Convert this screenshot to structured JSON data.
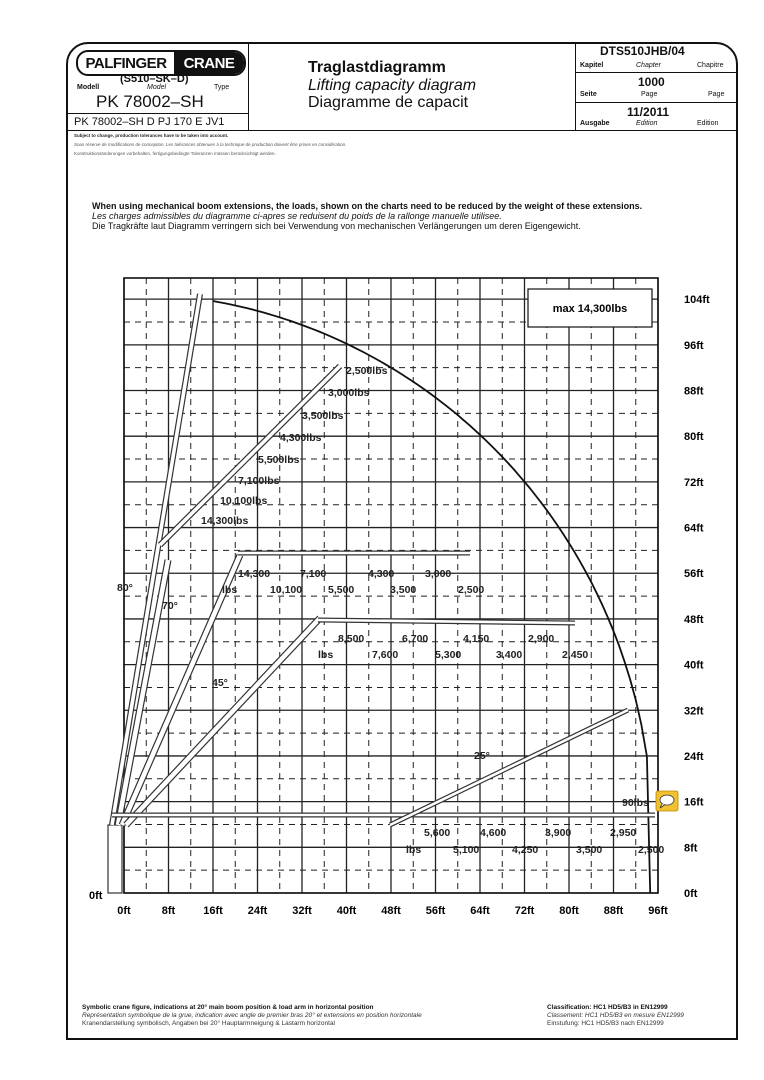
{
  "header": {
    "logo": {
      "left": "PALFINGER",
      "right": "CRANE"
    },
    "model_code": "(S510–SK–D)",
    "model_labels": {
      "de": "Modell",
      "en": "Model",
      "fr": "Type"
    },
    "model_name": "PK 78002–SH",
    "variant": "PK 78002–SH D PJ 170 E JV1",
    "title_de": "Traglastdiagramm",
    "title_en": "Lifting capacity diagram",
    "title_fr": "Diagramme de capacit",
    "chapter": {
      "value": "DTS510JHB/04",
      "de": "Kapitel",
      "en": "Chapter",
      "fr": "Chapitre"
    },
    "page": {
      "value": "1000",
      "de": "Seite",
      "en": "Page",
      "fr": "Page"
    },
    "edition": {
      "value": "11/2011",
      "de": "Ausgabe",
      "en": "Edition",
      "fr": "Edition"
    }
  },
  "disclaimer": [
    "Subject to change, production tolerances have to be taken into account.",
    "Sous réserve de modifications de conception. Les tolérances obtenues à la technique de production doivent être prises en considération.",
    "Konstruktionsänderungen vorbehalten, fertigungsbedingte Toleranzen müssen berücksichtigt werden."
  ],
  "notes": [
    "When using mechanical boom extensions, the loads, shown on the charts need to be reduced by the weight of these extensions.",
    "Les charges admissibles du diagramme ci-apres se reduisent du poids de la rallonge manuelle utilisee.",
    "Die Tragkräfte laut Diagramm verringern sich bei Verwendung von mechanischen Verlängerungen um deren Eigengewicht."
  ],
  "diagram": {
    "max_label": "max 14,300lbs",
    "x_ticks": [
      "0ft",
      "8ft",
      "16ft",
      "24ft",
      "32ft",
      "40ft",
      "48ft",
      "56ft",
      "64ft",
      "72ft",
      "80ft",
      "88ft",
      "96ft"
    ],
    "y_ticks": [
      "0ft",
      "8ft",
      "16ft",
      "24ft",
      "32ft",
      "40ft",
      "48ft",
      "56ft",
      "64ft",
      "72ft",
      "80ft",
      "88ft",
      "96ft",
      "104ft"
    ],
    "origin_label": "0ft",
    "angles": [
      "80°",
      "70°",
      "45°",
      "25°"
    ],
    "boom_70_loads": [
      "2,500lbs",
      "3,000lbs",
      "3,500lbs",
      "4,300lbs",
      "5,500lbs",
      "7,100lbs",
      "10,100lbs",
      "14,300lbs"
    ],
    "row_56ft": {
      "top": [
        "14,300",
        "7,100",
        "4,300",
        "3,000"
      ],
      "bottom": [
        "lbs",
        "10,100",
        "5,500",
        "3,500",
        "2,500"
      ]
    },
    "row_48ft": {
      "top": [
        "8,500",
        "6,700",
        "4,150",
        "2,900"
      ],
      "bottom": [
        "lbs",
        "7,600",
        "5,300",
        "3,400",
        "2,450"
      ]
    },
    "row_16ft": {
      "top": [
        "5,600",
        "4,600",
        "3,900",
        "2,950"
      ],
      "bottom": [
        "lbs",
        "5,100",
        "4,250",
        "3,500",
        "2,500"
      ]
    },
    "tip_load": "90lbs",
    "tip_icon": "speech-bubble-icon",
    "tip_icon_color": "#f2c12e"
  },
  "footer": {
    "left": [
      "Symbolic crane figure, indications at 20° main boom position & load arm in horizontal position",
      "Représentation symbolique de la grue, indication avec angle de premier bras 20° et extensions en position horizontale",
      "Kranendarstellung symbolisch, Angaben bei 20° Hauptarmneigung & Lastarm horizontal"
    ],
    "right": [
      "Classification: HC1 HD5/B3 in EN12999",
      "Classement: HC1 HD5/B3 en mesure EN12999",
      "Einstufung: HC1 HD5/B3 nach EN12999"
    ]
  }
}
